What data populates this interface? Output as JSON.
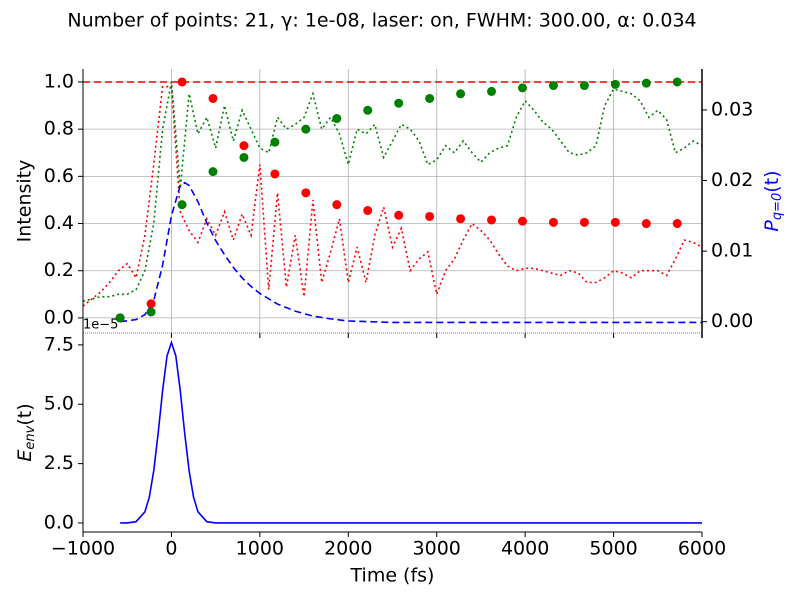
{
  "chart_data": [
    {
      "type": "line",
      "title": "Number of points: 21, γ: 1e-08, laser: on, FWHM: 300.00, α: 0.034",
      "ylabel": "Intensity",
      "y2label": {
        "base": "P",
        "sub": "q=0",
        "rest": "(t)"
      },
      "xlim": [
        -1000,
        6000
      ],
      "xticks": [
        {
          "value": -1000,
          "label": "−1000"
        },
        0,
        1000,
        2000,
        3000,
        4000,
        5000,
        6000
      ],
      "ylim": [
        -0.064,
        1.055
      ],
      "yticks": [
        {
          "value": 0,
          "label": "0.0"
        },
        {
          "value": 0.2,
          "label": "0.2"
        },
        {
          "value": 0.4,
          "label": "0.4"
        },
        {
          "value": 0.6,
          "label": "0.6"
        },
        {
          "value": 0.8,
          "label": "0.8"
        },
        {
          "value": 1.0,
          "label": "1.0"
        }
      ],
      "y2lim": [
        -0.0016,
        0.0358
      ],
      "y2ticks": [
        {
          "value": 0,
          "label": "0.00"
        },
        {
          "value": 0.01,
          "label": "0.01"
        },
        {
          "value": 0.02,
          "label": "0.02"
        },
        {
          "value": 0.03,
          "label": "0.03"
        }
      ],
      "y2color": "#0000ff",
      "grid": true,
      "hline": {
        "value": 1.0,
        "color": "#ff0000"
      },
      "series": [
        {
          "style": "dotted",
          "color": "#ff0000",
          "x": [
            -1000,
            -900,
            -800,
            -700,
            -600,
            -500,
            -400,
            -300,
            -200,
            -100,
            0,
            100,
            200,
            300,
            400,
            500,
            600,
            700,
            800,
            900,
            1000,
            1100,
            1200,
            1300,
            1400,
            1500,
            1600,
            1700,
            1800,
            1900,
            2000,
            2100,
            2200,
            2300,
            2400,
            2500,
            2600,
            2700,
            2800,
            2900,
            3000,
            3100,
            3200,
            3300,
            3400,
            3500,
            3600,
            3700,
            3800,
            3900,
            4000,
            4100,
            4200,
            4300,
            4400,
            4500,
            4600,
            4700,
            4800,
            4900,
            5000,
            5100,
            5200,
            5300,
            5400,
            5500,
            5600,
            5700,
            5800,
            5900,
            6000
          ],
          "values": [
            0.05,
            0.08,
            0.11,
            0.15,
            0.2,
            0.23,
            0.17,
            0.35,
            0.65,
            0.98,
            0.98,
            0.45,
            0.37,
            0.32,
            0.42,
            0.35,
            0.45,
            0.33,
            0.44,
            0.35,
            0.65,
            0.12,
            0.53,
            0.13,
            0.35,
            0.09,
            0.5,
            0.15,
            0.28,
            0.42,
            0.15,
            0.3,
            0.15,
            0.35,
            0.47,
            0.3,
            0.38,
            0.2,
            0.25,
            0.28,
            0.1,
            0.2,
            0.25,
            0.33,
            0.4,
            0.37,
            0.33,
            0.27,
            0.22,
            0.2,
            0.21,
            0.21,
            0.2,
            0.19,
            0.18,
            0.2,
            0.19,
            0.15,
            0.15,
            0.17,
            0.2,
            0.19,
            0.17,
            0.2,
            0.2,
            0.2,
            0.18,
            0.25,
            0.33,
            0.32,
            0.3
          ]
        },
        {
          "style": "dotted",
          "color": "#008000",
          "x": [
            -1000,
            -900,
            -800,
            -700,
            -600,
            -500,
            -400,
            -300,
            -200,
            -100,
            0,
            100,
            200,
            300,
            400,
            500,
            600,
            700,
            800,
            900,
            1000,
            1100,
            1200,
            1300,
            1400,
            1500,
            1600,
            1700,
            1800,
            1900,
            2000,
            2100,
            2200,
            2300,
            2400,
            2500,
            2600,
            2700,
            2800,
            2900,
            3000,
            3100,
            3200,
            3300,
            3400,
            3500,
            3600,
            3700,
            3800,
            3900,
            4000,
            4100,
            4200,
            4300,
            4400,
            4500,
            4600,
            4700,
            4800,
            4900,
            5000,
            5100,
            5200,
            5300,
            5400,
            5500,
            5600,
            5700,
            5800,
            5900,
            6000
          ],
          "values": [
            0.07,
            0.08,
            0.09,
            0.09,
            0.1,
            0.1,
            0.12,
            0.2,
            0.4,
            0.8,
            1.0,
            0.55,
            0.95,
            0.78,
            0.85,
            0.72,
            0.9,
            0.75,
            0.88,
            0.8,
            0.72,
            0.7,
            0.85,
            0.8,
            0.82,
            0.85,
            0.95,
            0.8,
            0.85,
            0.78,
            0.65,
            0.8,
            0.78,
            0.82,
            0.68,
            0.75,
            0.82,
            0.8,
            0.75,
            0.65,
            0.67,
            0.73,
            0.7,
            0.75,
            0.7,
            0.66,
            0.7,
            0.72,
            0.73,
            0.85,
            0.92,
            0.88,
            0.83,
            0.8,
            0.75,
            0.7,
            0.69,
            0.7,
            0.73,
            0.9,
            0.97,
            0.96,
            0.95,
            0.92,
            0.85,
            0.88,
            0.84,
            0.7,
            0.72,
            0.75,
            0.73
          ]
        },
        {
          "style": "dashed",
          "color": "#0000ff",
          "axis": "y2",
          "x": [
            -580,
            -400,
            -300,
            -200,
            -100,
            0,
            100,
            150,
            200,
            300,
            400,
            500,
            600,
            700,
            800,
            900,
            1000,
            1200,
            1400,
            1600,
            1800,
            2000,
            2500,
            3000,
            4000,
            5000,
            6000
          ],
          "values": [
            0,
            0.0003,
            0.001,
            0.003,
            0.008,
            0.015,
            0.0193,
            0.0197,
            0.0193,
            0.017,
            0.014,
            0.0115,
            0.0095,
            0.0077,
            0.0062,
            0.005,
            0.004,
            0.0025,
            0.0015,
            0.0008,
            0.0004,
            0.0001,
            -0.0001,
            -0.0001,
            -0.0001,
            -0.0001,
            -0.0001
          ]
        },
        {
          "style": "dots",
          "color": "#ff0000",
          "x": [
            -580,
            -230,
            120,
            470,
            820,
            1170,
            1520,
            1870,
            2220,
            2570,
            2920,
            3270,
            3620,
            3970,
            4320,
            4670,
            5020,
            5370,
            5720
          ],
          "values": [
            0,
            0.06,
            1.0,
            0.93,
            0.73,
            0.61,
            0.53,
            0.48,
            0.455,
            0.435,
            0.43,
            0.42,
            0.415,
            0.41,
            0.405,
            0.405,
            0.405,
            0.4,
            0.4
          ]
        },
        {
          "style": "dots",
          "color": "#008000",
          "x": [
            -580,
            -230,
            120,
            470,
            820,
            1170,
            1520,
            1870,
            2220,
            2570,
            2920,
            3270,
            3620,
            3970,
            4320,
            4670,
            5020,
            5370,
            5720
          ],
          "values": [
            0,
            0.025,
            0.48,
            0.62,
            0.68,
            0.745,
            0.8,
            0.845,
            0.88,
            0.91,
            0.93,
            0.95,
            0.96,
            0.975,
            0.985,
            0.985,
            0.99,
            0.995,
            1.0
          ]
        }
      ]
    },
    {
      "type": "line",
      "ylabel": {
        "base": "E",
        "sub": "env",
        "rest": "(t)"
      },
      "xlabel": "Time (fs)",
      "offset_label": "1e−5",
      "xlim": [
        -1000,
        6000
      ],
      "xticks": [
        {
          "value": -1000,
          "label": "−1000"
        },
        0,
        1000,
        2000,
        3000,
        4000,
        5000,
        6000
      ],
      "ylim": [
        -0.38,
        8.0
      ],
      "yticks": [
        {
          "value": 0,
          "label": "0.0"
        },
        {
          "value": 2.5,
          "label": "2.5"
        },
        {
          "value": 5.0,
          "label": "5.0"
        },
        {
          "value": 7.5,
          "label": "7.5"
        }
      ],
      "series": [
        {
          "style": "solid",
          "color": "#0000ff",
          "x": [
            -580,
            -500,
            -400,
            -300,
            -250,
            -200,
            -150,
            -100,
            -50,
            0,
            50,
            100,
            150,
            200,
            250,
            300,
            400,
            500,
            600,
            6000
          ],
          "values": [
            0,
            0.003,
            0.053,
            0.47,
            1.09,
            2.2,
            3.78,
            5.57,
            7.03,
            7.6,
            7.03,
            5.57,
            3.78,
            2.2,
            1.09,
            0.47,
            0.053,
            0.003,
            0,
            0
          ]
        }
      ]
    }
  ]
}
